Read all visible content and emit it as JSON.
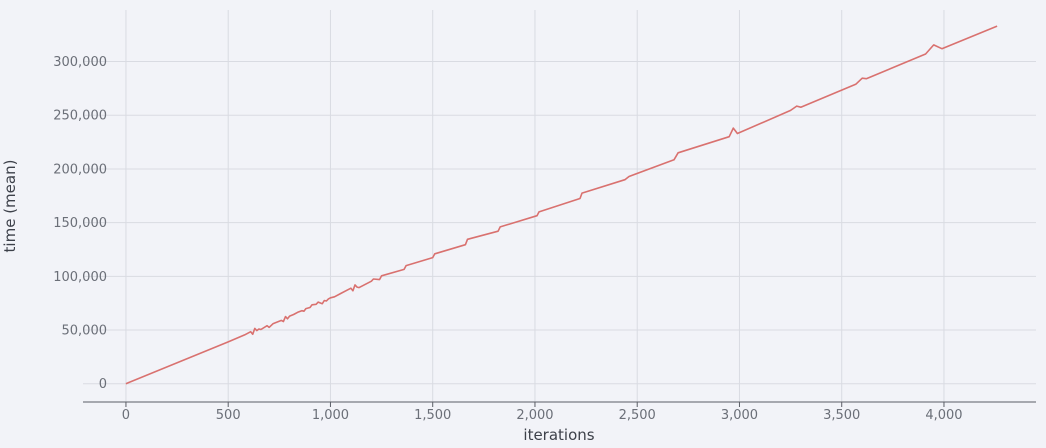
{
  "chart_data": {
    "type": "line",
    "xlabel": "iterations",
    "ylabel": "time (mean)",
    "xlim": [
      -210,
      4450
    ],
    "ylim": [
      -17000,
      348000
    ],
    "x_ticks": [
      0,
      500,
      1000,
      1500,
      2000,
      2500,
      3000,
      3500,
      4000
    ],
    "x_tick_labels": [
      "0",
      "500",
      "1,000",
      "1,500",
      "2,000",
      "2,500",
      "3,000",
      "3,500",
      "4,000"
    ],
    "y_ticks": [
      0,
      50000,
      100000,
      150000,
      200000,
      250000,
      300000
    ],
    "y_tick_labels": [
      "0",
      "50,000",
      "100,000",
      "150,000",
      "200,000",
      "250,000",
      "300,000"
    ],
    "grid": true,
    "legend": "none",
    "series": [
      {
        "color": "#d9716f",
        "x": [
          0,
          500,
          580,
          610,
          620,
          630,
          640,
          650,
          660,
          690,
          700,
          720,
          760,
          770,
          780,
          790,
          800,
          820,
          840,
          860,
          870,
          880,
          900,
          910,
          930,
          940,
          960,
          970,
          980,
          990,
          1000,
          1020,
          1050,
          1080,
          1100,
          1110,
          1120,
          1130,
          1140,
          1200,
          1210,
          1240,
          1250,
          1360,
          1370,
          1500,
          1510,
          1660,
          1670,
          1820,
          1830,
          2010,
          2020,
          2220,
          2230,
          2440,
          2460,
          2680,
          2700,
          2950,
          2970,
          2990,
          3250,
          3280,
          3300,
          3570,
          3600,
          3620,
          3910,
          3950,
          3990,
          4260
        ],
        "y": [
          0,
          39000,
          45500,
          48500,
          46000,
          51500,
          49500,
          51000,
          50500,
          54000,
          52500,
          56000,
          59000,
          58000,
          62500,
          60500,
          63000,
          64500,
          66500,
          68000,
          67500,
          70000,
          71000,
          73500,
          74000,
          76000,
          74500,
          77500,
          77000,
          79000,
          80000,
          81000,
          84000,
          87000,
          89000,
          86500,
          92000,
          90000,
          89500,
          95500,
          97500,
          97000,
          100500,
          106500,
          110000,
          117500,
          121000,
          129500,
          134500,
          142000,
          146000,
          156500,
          160000,
          172500,
          177500,
          190000,
          193000,
          208500,
          215000,
          230000,
          238000,
          233000,
          254500,
          258500,
          257500,
          279000,
          284500,
          284000,
          307000,
          315500,
          312000,
          333000
        ]
      }
    ]
  }
}
